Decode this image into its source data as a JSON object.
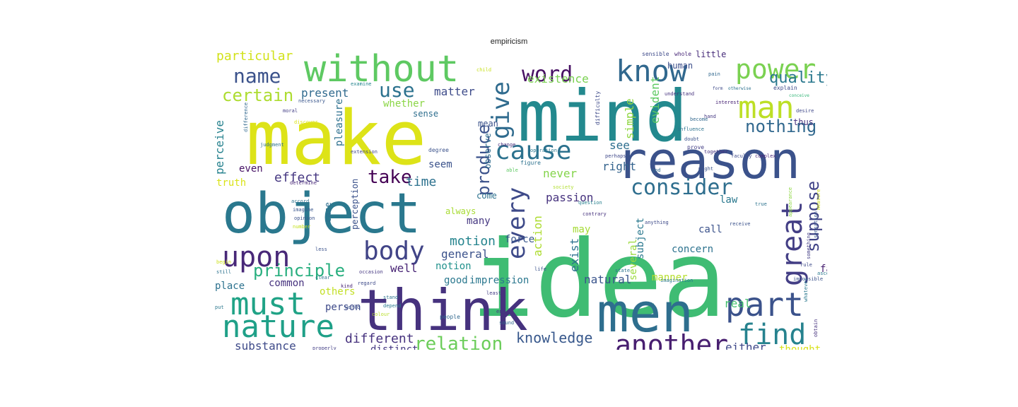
{
  "figure": {
    "title": "empiricism"
  },
  "palette": {
    "purple": "#440154",
    "indigo": "#433e85",
    "blue": "#31688e",
    "teal": "#21918c",
    "green": "#35b779",
    "lime": "#90d743",
    "yellow": "#dde318",
    "pale": "#c8e020"
  },
  "words": [
    {
      "text": "idea",
      "color": "#3fbc73"
    },
    {
      "text": "mind",
      "color": "#23898e"
    },
    {
      "text": "make",
      "color": "#dde318"
    },
    {
      "text": "object",
      "color": "#2a788e"
    },
    {
      "text": "think",
      "color": "#46327e"
    },
    {
      "text": "men",
      "color": "#2e6e8e"
    },
    {
      "text": "reason",
      "color": "#3b528b"
    },
    {
      "text": "without",
      "color": "#5ec962"
    },
    {
      "text": "know",
      "color": "#31688e"
    },
    {
      "text": "power",
      "color": "#7ad151"
    },
    {
      "text": "man",
      "color": "#bddf26"
    },
    {
      "text": "nature",
      "color": "#1fa088"
    },
    {
      "text": "must",
      "color": "#20a386"
    },
    {
      "text": "upon",
      "color": "#482878"
    },
    {
      "text": "body",
      "color": "#414487"
    },
    {
      "text": "part",
      "color": "#3b528b"
    },
    {
      "text": "find",
      "color": "#26828e"
    },
    {
      "text": "another",
      "color": "#481f70"
    },
    {
      "text": "great",
      "color": "#433e85"
    },
    {
      "text": "cause",
      "color": "#2c728e"
    },
    {
      "text": "every",
      "color": "#3e4a89"
    },
    {
      "text": "give",
      "color": "#2f6b8e"
    },
    {
      "text": "word",
      "color": "#471063"
    },
    {
      "text": "name",
      "color": "#3b528b"
    },
    {
      "text": "consider",
      "color": "#2e6e8e"
    },
    {
      "text": "nothing",
      "color": "#31688e"
    },
    {
      "text": "suppose",
      "color": "#414487"
    },
    {
      "text": "principle",
      "color": "#29af7f"
    },
    {
      "text": "relation",
      "color": "#6ccd5a"
    },
    {
      "text": "use",
      "color": "#2c728e"
    },
    {
      "text": "certain",
      "color": "#addc30"
    },
    {
      "text": "quality",
      "color": "#2a788e"
    },
    {
      "text": "produce",
      "color": "#3b528b"
    },
    {
      "text": "take",
      "color": "#440154"
    },
    {
      "text": "knowledge",
      "color": "#38588c"
    },
    {
      "text": "substance",
      "color": "#3e4a89"
    },
    {
      "text": "different",
      "color": "#46327e"
    },
    {
      "text": "particular",
      "color": "#d2e21b"
    },
    {
      "text": "present",
      "color": "#306a8e"
    },
    {
      "text": "matter",
      "color": "#3e4c8a"
    },
    {
      "text": "existence",
      "color": "#7ad151"
    },
    {
      "text": "effect",
      "color": "#453781"
    },
    {
      "text": "time",
      "color": "#2c718e"
    },
    {
      "text": "passion",
      "color": "#46327e"
    },
    {
      "text": "action",
      "color": "#addc30"
    },
    {
      "text": "perceive",
      "color": "#26828e"
    },
    {
      "text": "motion",
      "color": "#25848e"
    },
    {
      "text": "general",
      "color": "#3b528b"
    },
    {
      "text": "well",
      "color": "#482475"
    },
    {
      "text": "never",
      "color": "#84d44b"
    },
    {
      "text": "see",
      "color": "#2e6e8e"
    },
    {
      "text": "right",
      "color": "#33638d"
    },
    {
      "text": "simple",
      "color": "#90d743"
    },
    {
      "text": "evident",
      "color": "#5ec962"
    },
    {
      "text": "either",
      "color": "#3f4889"
    },
    {
      "text": "thought",
      "color": "#d8e219"
    },
    {
      "text": "distinct",
      "color": "#443983"
    },
    {
      "text": "impression",
      "color": "#2a778e"
    },
    {
      "text": "good",
      "color": "#2a788e"
    },
    {
      "text": "natural",
      "color": "#3a548c"
    },
    {
      "text": "manner",
      "color": "#b5de2b"
    },
    {
      "text": "exist",
      "color": "#2d708e"
    },
    {
      "text": "real",
      "color": "#46c06f"
    },
    {
      "text": "law",
      "color": "#2a788e"
    },
    {
      "text": "call",
      "color": "#3b528b"
    },
    {
      "text": "concern",
      "color": "#2c728e"
    },
    {
      "text": "force",
      "color": "#39568c"
    },
    {
      "text": "notion",
      "color": "#21918c"
    },
    {
      "text": "common",
      "color": "#46327e"
    },
    {
      "text": "place",
      "color": "#2c728e"
    },
    {
      "text": "others",
      "color": "#c2df23"
    },
    {
      "text": "person",
      "color": "#3e4a89"
    },
    {
      "text": "observe",
      "color": "#2f6c8e"
    },
    {
      "text": "pleasure",
      "color": "#2d708e"
    },
    {
      "text": "seem",
      "color": "#3b528b"
    },
    {
      "text": "even",
      "color": "#471365"
    },
    {
      "text": "case",
      "color": "#2e6f8e"
    },
    {
      "text": "truth",
      "color": "#dae319"
    },
    {
      "text": "perception",
      "color": "#3b528b"
    },
    {
      "text": "many",
      "color": "#453781"
    },
    {
      "text": "always",
      "color": "#a8db34"
    },
    {
      "text": "come",
      "color": "#2c728e"
    },
    {
      "text": "little",
      "color": "#472c7a"
    },
    {
      "text": "human",
      "color": "#3d4e8a"
    },
    {
      "text": "thus",
      "color": "#46327e"
    },
    {
      "text": "far",
      "color": "#482071"
    },
    {
      "text": "may",
      "color": "#a5db36"
    },
    {
      "text": "several",
      "color": "#9bd93c"
    },
    {
      "text": "subject",
      "color": "#2a788e"
    },
    {
      "text": "whether",
      "color": "#8bd646"
    },
    {
      "text": "sense",
      "color": "#2e6e8e"
    },
    {
      "text": "mean",
      "color": "#3b528b"
    },
    {
      "text": "sensible",
      "color": "#3e4a89"
    },
    {
      "text": "whole",
      "color": "#482878"
    },
    {
      "text": "pain",
      "color": "#31688e"
    },
    {
      "text": "otherwise",
      "color": "#2c728e"
    },
    {
      "text": "explain",
      "color": "#3e4a89"
    },
    {
      "text": "interest",
      "color": "#482475"
    },
    {
      "text": "understand",
      "color": "#46327e"
    },
    {
      "text": "conceive",
      "color": "#35b779"
    },
    {
      "text": "desire",
      "color": "#3f4889"
    },
    {
      "text": "examine",
      "color": "#25848e"
    },
    {
      "text": "necessary",
      "color": "#39568c"
    },
    {
      "text": "moral",
      "color": "#433e85"
    },
    {
      "text": "difference",
      "color": "#31688e"
    },
    {
      "text": "discover",
      "color": "#dce319"
    },
    {
      "text": "judgment",
      "color": "#2c728e"
    },
    {
      "text": "extension",
      "color": "#404688"
    },
    {
      "text": "operation",
      "color": "#2a778e"
    },
    {
      "text": "degree",
      "color": "#3b528b"
    },
    {
      "text": "change",
      "color": "#472d7b"
    },
    {
      "text": "figure",
      "color": "#2c718e"
    },
    {
      "text": "able",
      "color": "#5ec962"
    },
    {
      "text": "society",
      "color": "#b0dd2f"
    },
    {
      "text": "difficulty",
      "color": "#3e4a89"
    },
    {
      "text": "influence",
      "color": "#2c728e"
    },
    {
      "text": "doubt",
      "color": "#3b528b"
    },
    {
      "text": "prove",
      "color": "#433e85"
    },
    {
      "text": "together",
      "color": "#46327e"
    },
    {
      "text": "faculty",
      "color": "#3e4a89"
    },
    {
      "text": "complex",
      "color": "#482677"
    },
    {
      "text": "become",
      "color": "#31688e"
    },
    {
      "text": "hand",
      "color": "#453882"
    },
    {
      "text": "might",
      "color": "#3b528b"
    },
    {
      "text": "perhaps",
      "color": "#3f4889"
    },
    {
      "text": "god",
      "color": "#31688e"
    },
    {
      "text": "true",
      "color": "#2c728e"
    },
    {
      "text": "appearance",
      "color": "#8fd744"
    },
    {
      "text": "question",
      "color": "#27808e"
    },
    {
      "text": "contrary",
      "color": "#46327e"
    },
    {
      "text": "anything",
      "color": "#3e4a89"
    },
    {
      "text": "receive",
      "color": "#3b528b"
    },
    {
      "text": "imagination",
      "color": "#2a788e"
    },
    {
      "text": "least",
      "color": "#433e85"
    },
    {
      "text": "people",
      "color": "#31688e"
    },
    {
      "text": "stand",
      "color": "#2c728e"
    },
    {
      "text": "world",
      "color": "#3b528b"
    },
    {
      "text": "colour",
      "color": "#b8de29"
    },
    {
      "text": "regard",
      "color": "#3e4a89"
    },
    {
      "text": "depend",
      "color": "#2a788e"
    },
    {
      "text": "occasion",
      "color": "#453781"
    },
    {
      "text": "imagine",
      "color": "#39568c"
    },
    {
      "text": "accord",
      "color": "#2c728e"
    },
    {
      "text": "number",
      "color": "#c5e021"
    },
    {
      "text": "opinion",
      "color": "#3b528b"
    },
    {
      "text": "determine",
      "color": "#482878"
    },
    {
      "text": "clear",
      "color": "#2c728e"
    },
    {
      "text": "properly",
      "color": "#433e85"
    },
    {
      "text": "proposition",
      "color": "#3e4a89"
    },
    {
      "text": "abstract",
      "color": "#31688e"
    },
    {
      "text": "impossible",
      "color": "#3b528b"
    },
    {
      "text": "whatever",
      "color": "#2a788e"
    },
    {
      "text": "obtain",
      "color": "#46327e"
    },
    {
      "text": "rule",
      "color": "#3e4a89"
    },
    {
      "text": "sensation",
      "color": "#39568c"
    },
    {
      "text": "measure",
      "color": "#d0e11c"
    },
    {
      "text": "still",
      "color": "#2c728e"
    },
    {
      "text": "begin",
      "color": "#cde11d"
    },
    {
      "text": "kind",
      "color": "#482475"
    },
    {
      "text": "life",
      "color": "#3b528b"
    },
    {
      "text": "put",
      "color": "#2a788e"
    },
    {
      "text": "end",
      "color": "#453882"
    },
    {
      "text": "sound",
      "color": "#31688e"
    },
    {
      "text": "form",
      "color": "#3e4a89"
    },
    {
      "text": "child",
      "color": "#c8e020"
    },
    {
      "text": "state",
      "color": "#2c728e"
    },
    {
      "text": "less",
      "color": "#3b528b"
    },
    {
      "text": "something",
      "color": "#433e85"
    },
    {
      "text": "ascent",
      "color": "#2a788e"
    }
  ]
}
